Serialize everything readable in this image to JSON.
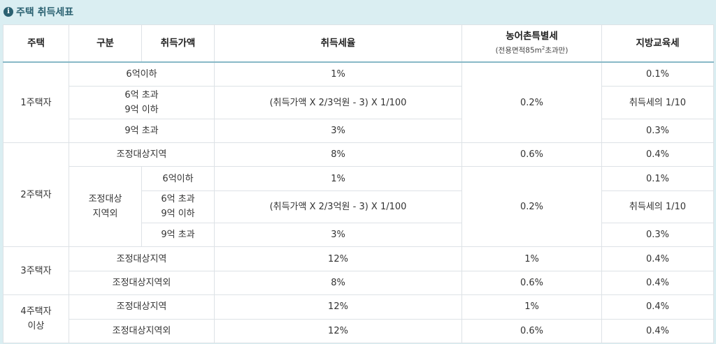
{
  "banner": {
    "icon": "info-icon",
    "title": "주택 취득세표"
  },
  "headers": {
    "house": "주택",
    "category": "구분",
    "price": "취득가액",
    "rate": "취득세율",
    "rural_tax": "농어촌특별세",
    "rural_tax_note_pre": "(전용면적85m",
    "rural_tax_note_sup": "2",
    "rural_tax_note_post": "초과만)",
    "edu_tax": "지방교육세"
  },
  "rows": {
    "h1": {
      "label": "1주택자",
      "r1": {
        "price": "6억이하",
        "rate": "1%",
        "edu": "0.1%"
      },
      "r2": {
        "price_l1": "6억 초과",
        "price_l2": "9억 이하",
        "rate": "(취득가액 X 2/3억원 - 3) X 1/100",
        "edu": "취득세의 1/10"
      },
      "r3": {
        "price": "9억 초과",
        "rate": "3%",
        "edu": "0.3%"
      },
      "rural": "0.2%"
    },
    "h2": {
      "label": "2주택자",
      "adj": {
        "cat": "조정대상지역",
        "rate": "8%",
        "rural": "0.6%",
        "edu": "0.4%"
      },
      "nonadj_l1": "조정대상",
      "nonadj_l2": "지역외",
      "r1": {
        "price": "6억이하",
        "rate": "1%",
        "edu": "0.1%"
      },
      "r2": {
        "price_l1": "6억 초과",
        "price_l2": "9억 이하",
        "rate": "(취득가액 X 2/3억원 - 3) X 1/100",
        "edu": "취득세의 1/10"
      },
      "r3": {
        "price": "9억 초과",
        "rate": "3%",
        "edu": "0.3%"
      },
      "rural": "0.2%"
    },
    "h3": {
      "label": "3주택자",
      "adj": {
        "cat": "조정대상지역",
        "rate": "12%",
        "rural": "1%",
        "edu": "0.4%"
      },
      "non": {
        "cat": "조정대상지역외",
        "rate": "8%",
        "rural": "0.6%",
        "edu": "0.4%"
      }
    },
    "h4": {
      "label_l1": "4주택자",
      "label_l2": "이상",
      "adj": {
        "cat": "조정대상지역",
        "rate": "12%",
        "rural": "1%",
        "edu": "0.4%"
      },
      "non": {
        "cat": "조정대상지역외",
        "rate": "12%",
        "rural": "0.6%",
        "edu": "0.4%"
      }
    }
  }
}
